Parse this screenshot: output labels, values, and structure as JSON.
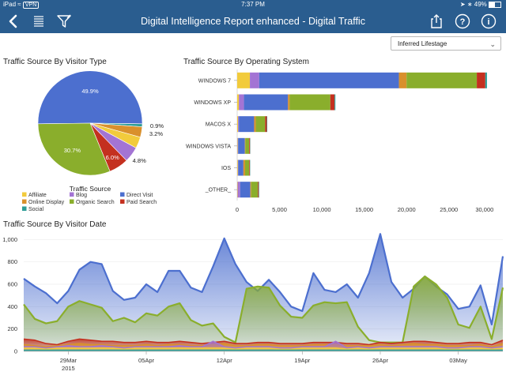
{
  "status": {
    "device": "iPad",
    "vpn": "VPN",
    "time": "7:37 PM",
    "battery": "49%"
  },
  "nav": {
    "title": "Digital Intelligence Report enhanced - Digital Traffic"
  },
  "filter": {
    "selected": "Inferred Lifestage"
  },
  "colors": {
    "Affiliate": "#f2cb3c",
    "Blog": "#a374d4",
    "Direct Visit": "#4c6fcf",
    "Online Display": "#d9902c",
    "Organic Search": "#8aae2c",
    "Paid Search": "#c4301f",
    "Social": "#2d9d96"
  },
  "pie": {
    "title": "Traffic Source By Visitor Type",
    "legend_title": "Traffic Source",
    "legend": [
      "Affiliate",
      "Blog",
      "Direct Visit",
      "Online Display",
      "Organic Search",
      "Paid Search",
      "Social"
    ],
    "chart_data": {
      "type": "pie",
      "slices": [
        {
          "label": "Direct Visit",
          "value": 49.9,
          "text": "49.9%"
        },
        {
          "label": "Social",
          "value": 0.9,
          "text": "0.9%"
        },
        {
          "label": "Online Display",
          "value": 3.2,
          "text": "3.2%"
        },
        {
          "label": "Affiliate",
          "value": 3.5,
          "text": ""
        },
        {
          "label": "Blog",
          "value": 4.8,
          "text": "4.8%"
        },
        {
          "label": "Paid Search",
          "value": 6.0,
          "text": "6.0%"
        },
        {
          "label": "Organic Search",
          "value": 30.7,
          "text": "30.7%"
        }
      ]
    }
  },
  "bar": {
    "title": "Traffic Source By Operating System",
    "chart_data": {
      "type": "bar",
      "orientation": "horizontal",
      "stacked": true,
      "categories": [
        "WINDOWS 7",
        "WINDOWS XP",
        "MACOS X",
        "WINDOWS VISTA",
        "IOS",
        "_OTHER_"
      ],
      "x_ticks": [
        "0",
        "5,000",
        "10,000",
        "15,000",
        "20,000",
        "25,000",
        "30,000"
      ],
      "xlim": [
        0,
        31000
      ],
      "series": [
        {
          "name": "Affiliate",
          "values": [
            1500,
            200,
            100,
            60,
            80,
            50
          ]
        },
        {
          "name": "Blog",
          "values": [
            1100,
            600,
            100,
            50,
            50,
            300
          ]
        },
        {
          "name": "Direct Visit",
          "values": [
            16500,
            5200,
            1800,
            800,
            600,
            1200
          ]
        },
        {
          "name": "Online Display",
          "values": [
            900,
            200,
            200,
            60,
            200,
            100
          ]
        },
        {
          "name": "Organic Search",
          "values": [
            8300,
            4800,
            1100,
            450,
            500,
            800
          ]
        },
        {
          "name": "Paid Search",
          "values": [
            1000,
            500,
            200,
            100,
            80,
            100
          ]
        },
        {
          "name": "Social",
          "values": [
            200,
            100,
            50,
            30,
            30,
            50
          ]
        }
      ]
    }
  },
  "area": {
    "title": "Traffic Source By Visitor Date",
    "chart_data": {
      "type": "area",
      "y_ticks": [
        "0",
        "200",
        "400",
        "600",
        "800",
        "1,000"
      ],
      "ylim": [
        0,
        1080
      ],
      "x_ticks": [
        {
          "label": "29Mar",
          "sub": "2015",
          "index": 4
        },
        {
          "label": "05Apr",
          "sub": "",
          "index": 11
        },
        {
          "label": "12Apr",
          "sub": "",
          "index": 18
        },
        {
          "label": "19Apr",
          "sub": "",
          "index": 25
        },
        {
          "label": "26Apr",
          "sub": "",
          "index": 32
        },
        {
          "label": "03May",
          "sub": "",
          "index": 39
        }
      ],
      "series": [
        {
          "name": "Direct Visit",
          "values": [
            650,
            580,
            520,
            430,
            540,
            730,
            800,
            780,
            540,
            460,
            480,
            600,
            530,
            720,
            720,
            570,
            530,
            760,
            1010,
            780,
            620,
            540,
            640,
            530,
            400,
            360,
            700,
            550,
            530,
            600,
            480,
            700,
            1050,
            620,
            480,
            560,
            670,
            580,
            510,
            380,
            400,
            590,
            240,
            850
          ]
        },
        {
          "name": "Organic Search",
          "values": [
            420,
            290,
            250,
            270,
            400,
            450,
            420,
            390,
            270,
            300,
            260,
            340,
            320,
            400,
            430,
            280,
            230,
            250,
            130,
            80,
            560,
            580,
            570,
            410,
            310,
            300,
            410,
            440,
            430,
            440,
            220,
            100,
            80,
            80,
            80,
            580,
            670,
            600,
            480,
            240,
            210,
            400,
            110,
            570
          ]
        },
        {
          "name": "Paid Search",
          "values": [
            110,
            100,
            70,
            60,
            90,
            110,
            100,
            90,
            90,
            80,
            80,
            90,
            80,
            80,
            90,
            80,
            70,
            80,
            90,
            70,
            70,
            80,
            80,
            70,
            70,
            70,
            80,
            80,
            80,
            70,
            70,
            60,
            80,
            70,
            80,
            90,
            90,
            80,
            70,
            70,
            80,
            80,
            60,
            100
          ]
        },
        {
          "name": "Online Display",
          "values": [
            60,
            50,
            40,
            50,
            60,
            70,
            60,
            60,
            50,
            50,
            50,
            60,
            50,
            60,
            60,
            50,
            50,
            60,
            70,
            50,
            50,
            60,
            60,
            50,
            50,
            50,
            60,
            60,
            60,
            50,
            50,
            50,
            60,
            50,
            60,
            70,
            60,
            60,
            50,
            50,
            50,
            60,
            40,
            70
          ]
        },
        {
          "name": "Blog",
          "values": [
            40,
            40,
            30,
            40,
            50,
            40,
            40,
            50,
            40,
            30,
            40,
            40,
            40,
            40,
            50,
            40,
            40,
            90,
            40,
            30,
            40,
            40,
            40,
            30,
            30,
            40,
            40,
            40,
            90,
            30,
            40,
            30,
            40,
            40,
            40,
            40,
            40,
            40,
            30,
            30,
            40,
            40,
            30,
            40
          ]
        },
        {
          "name": "Affiliate",
          "values": [
            30,
            30,
            20,
            30,
            30,
            30,
            30,
            30,
            30,
            20,
            30,
            30,
            30,
            30,
            30,
            30,
            30,
            30,
            30,
            20,
            30,
            30,
            30,
            20,
            20,
            30,
            30,
            30,
            30,
            20,
            30,
            20,
            30,
            30,
            30,
            30,
            30,
            30,
            20,
            20,
            30,
            30,
            20,
            30
          ]
        },
        {
          "name": "Social",
          "values": [
            10,
            10,
            10,
            10,
            10,
            10,
            10,
            10,
            10,
            10,
            10,
            10,
            10,
            10,
            10,
            10,
            10,
            10,
            10,
            10,
            10,
            10,
            10,
            10,
            10,
            10,
            10,
            10,
            10,
            10,
            10,
            10,
            10,
            10,
            10,
            10,
            10,
            10,
            10,
            10,
            10,
            10,
            10,
            10
          ]
        }
      ]
    }
  }
}
